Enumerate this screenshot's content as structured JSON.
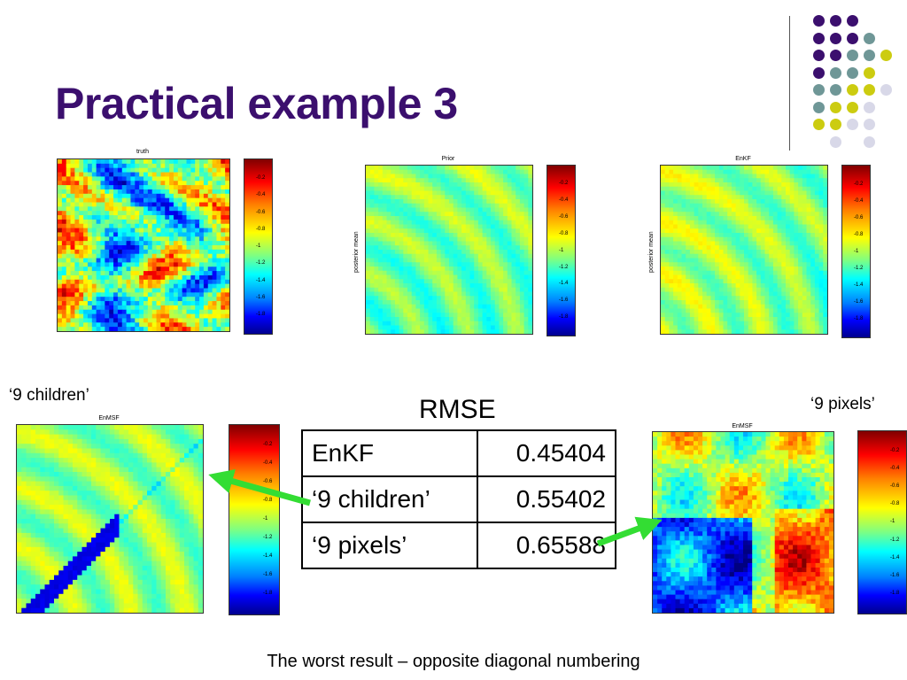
{
  "slide_title": "Practical example 3",
  "colors": {
    "title": "#3b0f6e",
    "arrow": "#33dd33",
    "dot_purple": "#3b0f6e",
    "dot_teal": "#6f9797",
    "dot_yellow": "#cccc10",
    "dot_lavender": "#d8d8e8"
  },
  "panels": {
    "truth": {
      "title": "truth",
      "ylabel": ""
    },
    "prior": {
      "title": "Prior",
      "ylabel": "posterior mean"
    },
    "enkf": {
      "title": "EnKF",
      "ylabel": "posterior mean"
    },
    "children": {
      "title": "EnMSF",
      "ylabel": ""
    },
    "pixels": {
      "title": "EnMSF",
      "ylabel": ""
    }
  },
  "colorbar_ticks": [
    "-0.2",
    "-0.4",
    "-0.6",
    "-0.8",
    "-1",
    "-1.2",
    "-1.4",
    "-1.6",
    "-1.8"
  ],
  "labels": {
    "children": "‘9 children’",
    "pixels": "‘9 pixels’"
  },
  "rmse": {
    "title": "RMSE",
    "rows": [
      {
        "name": "EnKF",
        "value": "0.45404"
      },
      {
        "name": "‘9 children’",
        "value": "0.55402"
      },
      {
        "name": "‘9 pixels’",
        "value": "0.65588"
      }
    ]
  },
  "caption": "The worst result – opposite diagonal numbering"
}
